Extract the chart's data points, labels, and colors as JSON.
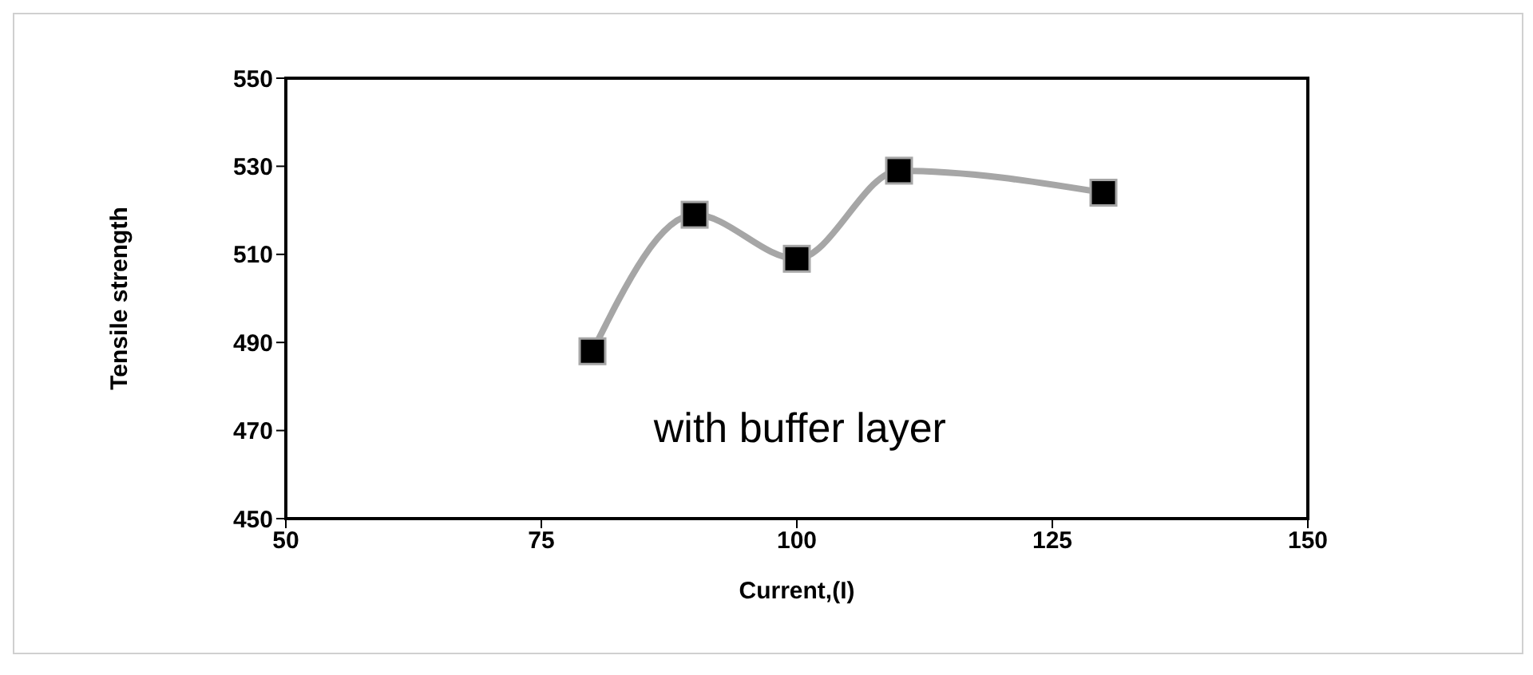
{
  "chart_data": {
    "type": "line",
    "xlabel": "Current,(I)",
    "ylabel": "Tensile strength",
    "x": [
      80,
      90,
      100,
      110,
      130
    ],
    "series": [
      {
        "color": "#a6a6a6",
        "values": [
          488,
          519,
          509,
          529,
          524
        ]
      }
    ],
    "xlim": [
      50,
      150
    ],
    "xticks": [
      50,
      75,
      100,
      125,
      150
    ],
    "ylim": [
      450,
      550
    ],
    "yticks": [
      450,
      470,
      490,
      510,
      530,
      550
    ],
    "grid": false,
    "legend": false,
    "marker": "square",
    "line_style": "solid",
    "annotations": [
      "with buffer layer"
    ]
  }
}
